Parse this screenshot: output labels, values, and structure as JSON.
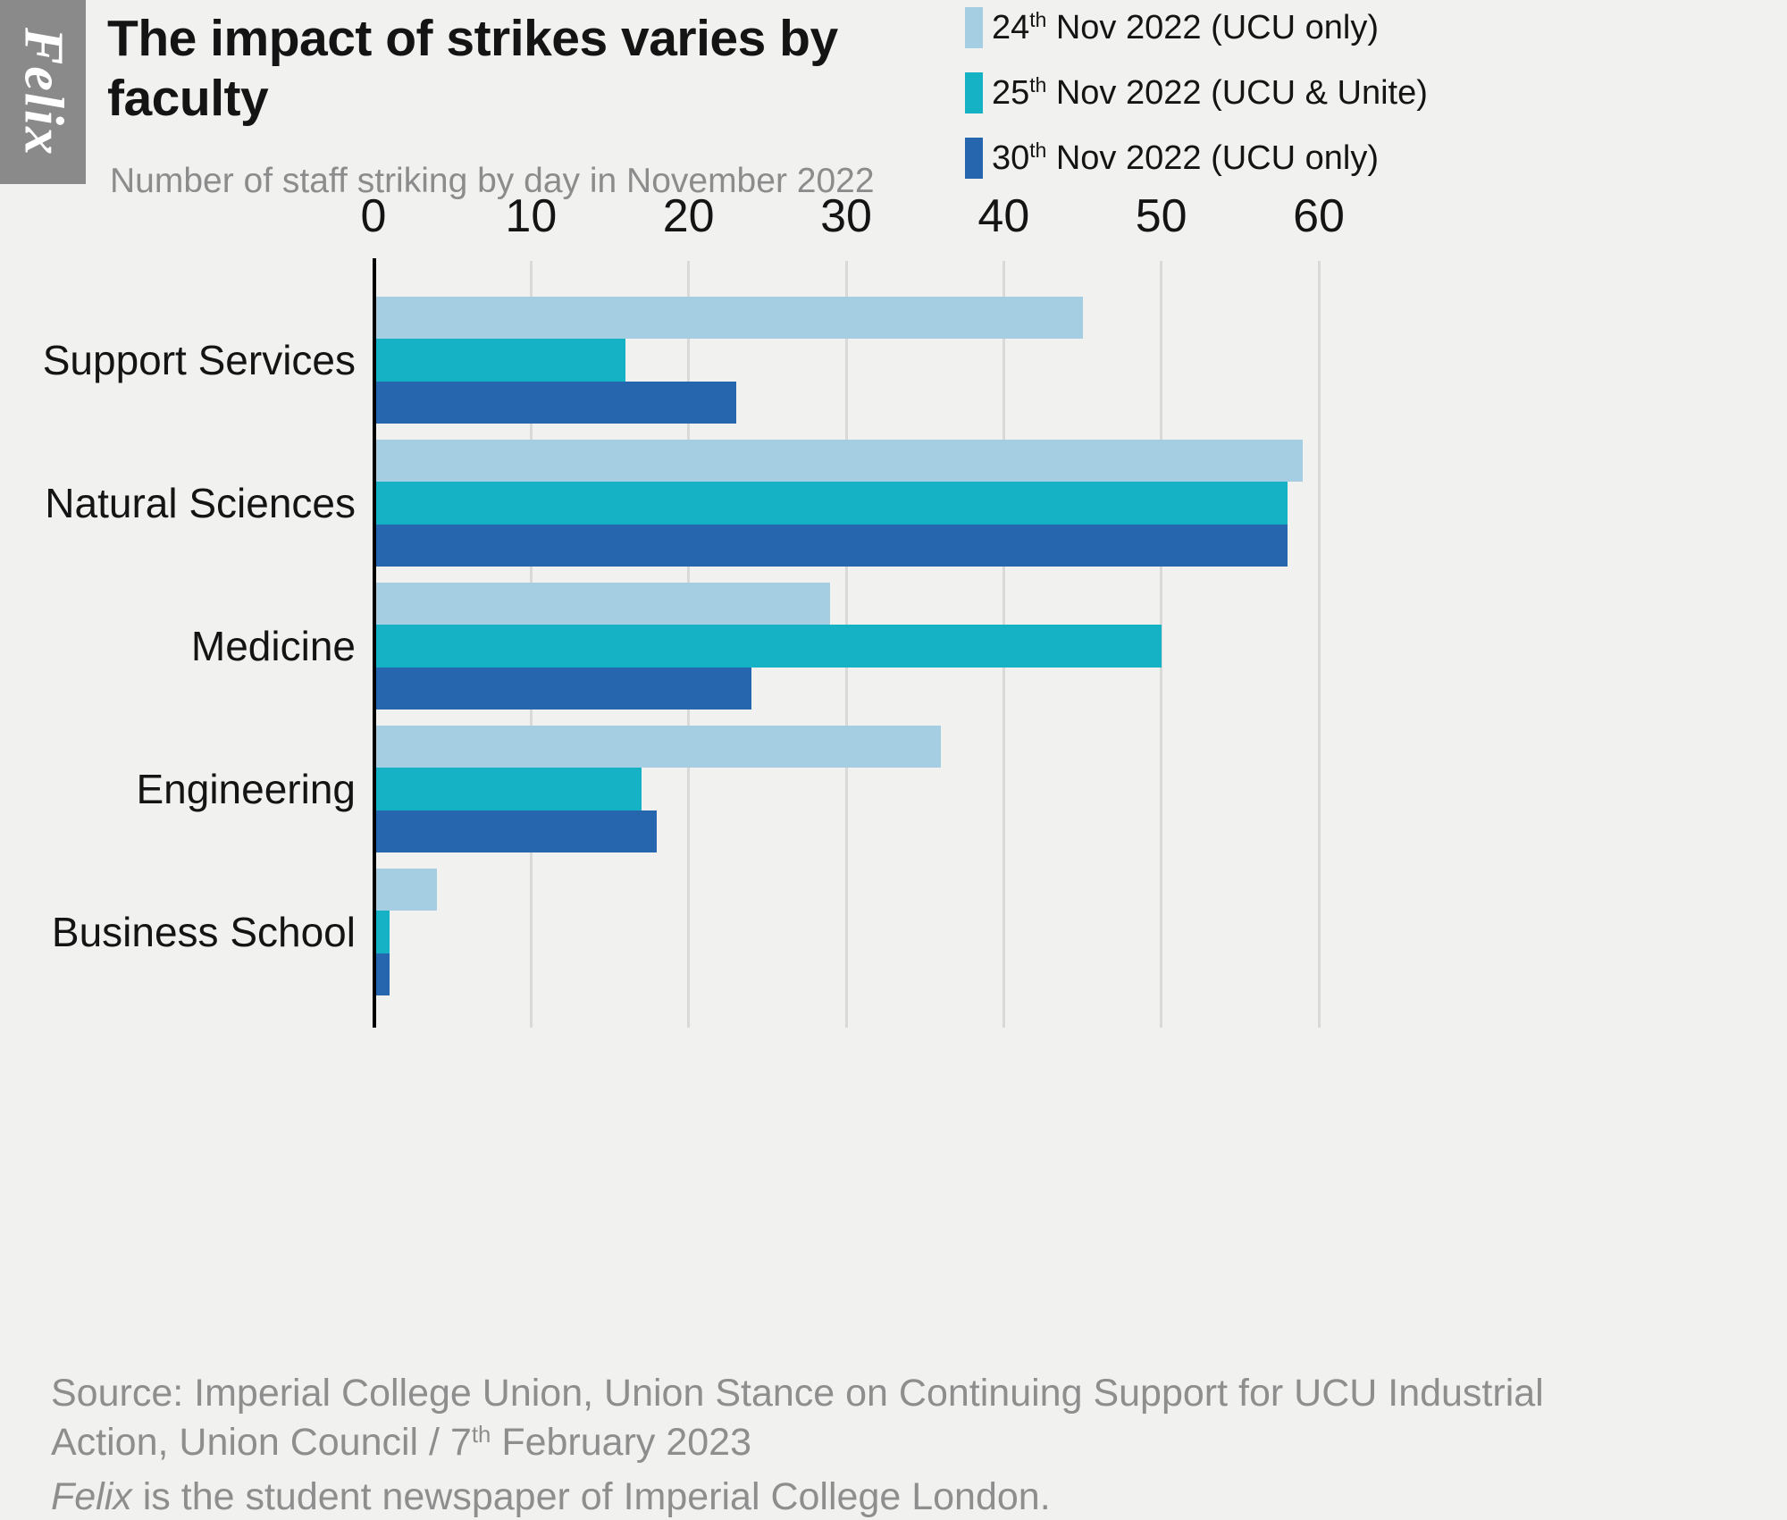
{
  "logo": {
    "text": "Felix",
    "bg_color": "#8a8a8a",
    "text_color": "#ffffff"
  },
  "chart_data": {
    "type": "bar",
    "orientation": "horizontal",
    "title": "The impact of strikes varies by faculty",
    "title_lines": [
      "The impact of strikes varies by",
      "faculty"
    ],
    "subtitle": "Number of staff striking by day in November 2022",
    "categories": [
      "Support Services",
      "Natural Sciences",
      "Medicine",
      "Engineering",
      "Business School"
    ],
    "series": [
      {
        "key": "24-nov-2022",
        "name": "24th Nov 2022 (UCU only)",
        "label_parts": [
          {
            "text": "24"
          },
          {
            "text": "th",
            "sup": true
          },
          {
            "text": " Nov 2022 (UCU only)"
          }
        ],
        "color": "#a6cee3",
        "values": [
          45,
          59,
          29,
          36,
          4
        ]
      },
      {
        "key": "25-nov-2022",
        "name": "25th Nov 2022 (UCU & Unite)",
        "label_parts": [
          {
            "text": "25"
          },
          {
            "text": "th",
            "sup": true
          },
          {
            "text": " Nov 2022 (UCU & Unite)"
          }
        ],
        "color": "#15b2c6",
        "values": [
          16,
          58,
          50,
          17,
          1
        ]
      },
      {
        "key": "30-nov-2022",
        "name": "30th Nov 2022 (UCU only)",
        "label_parts": [
          {
            "text": "30"
          },
          {
            "text": "th",
            "sup": true
          },
          {
            "text": " Nov 2022 (UCU only)"
          }
        ],
        "color": "#2566af",
        "values": [
          23,
          58,
          24,
          18,
          1
        ]
      }
    ],
    "xlim": [
      0,
      60
    ],
    "xticks": [
      0,
      10,
      20,
      30,
      40,
      50,
      60
    ],
    "grid": true,
    "legend_position": "top-right",
    "background_color": "#f1f1ef",
    "gridline_color": "#d9d9d9"
  },
  "source": {
    "line1": "Source: Imperial College Union, Union Stance on Continuing Support for UCU Industrial",
    "line2": "Action, Union Council / 7th February 2023",
    "line3": "Felix is the student newspaper of Imperial College London.",
    "lines": [
      [
        {
          "text": "Source: Imperial College Union, Union Stance on Continuing Support for UCU Industrial"
        }
      ],
      [
        {
          "text": "Action, Union Council / 7"
        },
        {
          "text": "th",
          "sup": true
        },
        {
          "text": " February 2023"
        }
      ],
      [
        {
          "text": "Felix",
          "italic": true
        },
        {
          "text": " is the student newspaper of Imperial College London."
        }
      ]
    ]
  }
}
